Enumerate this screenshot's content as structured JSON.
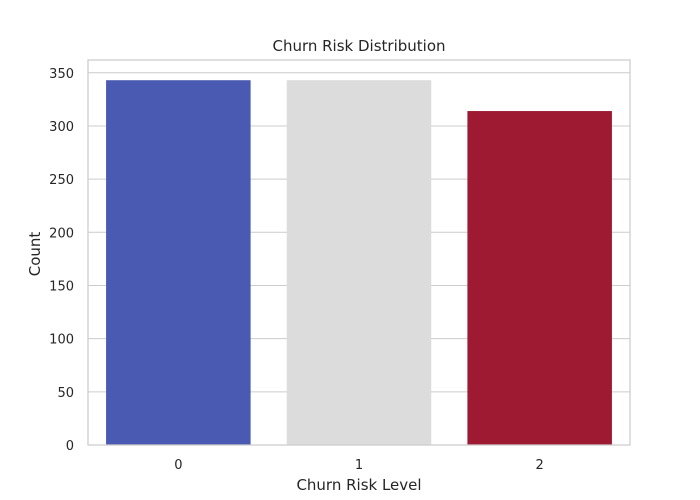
{
  "chart_data": {
    "type": "bar",
    "title": "Churn Risk Distribution",
    "xlabel": "Churn Risk Level",
    "ylabel": "Count",
    "categories": [
      "0",
      "1",
      "2"
    ],
    "values": [
      343,
      343,
      314
    ],
    "bar_colors": [
      "#4a5ab3",
      "#dcdcdc",
      "#9e1a33"
    ],
    "ylim": [
      0,
      362
    ],
    "yticks": [
      0,
      50,
      100,
      150,
      200,
      250,
      300,
      350
    ],
    "grid": "horizontal",
    "style": {
      "grid_color": "#cccccc",
      "frame_color": "#cccccc"
    }
  }
}
